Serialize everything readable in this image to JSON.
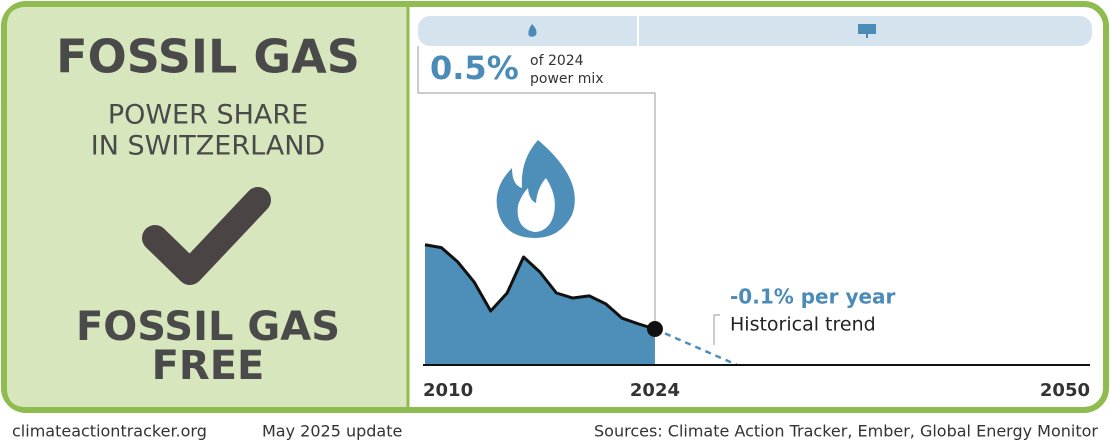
{
  "left_panel": {
    "title": "FOSSIL GAS",
    "subtitle_lines": [
      "POWER SHARE",
      "IN SWITZERLAND"
    ],
    "status_lines": [
      "FOSSIL GAS",
      "FREE"
    ]
  },
  "footer": {
    "site": "climateactiontracker.org",
    "update": "May 2025 update",
    "sources": "Sources: Climate Action Tracker, Ember, Global Energy Monitor"
  },
  "chart_data": {
    "type": "area",
    "color": "#4d8fb8",
    "x": [
      2010,
      2011,
      2012,
      2013,
      2014,
      2015,
      2016,
      2017,
      2018,
      2019,
      2020,
      2021,
      2022,
      2023,
      2024
    ],
    "values": [
      1.67,
      1.63,
      1.43,
      1.15,
      0.75,
      1.0,
      1.5,
      1.29,
      1.0,
      0.93,
      0.96,
      0.85,
      0.65,
      0.57,
      0.5
    ],
    "xlim": [
      2010,
      2050
    ],
    "xticks": [
      2010,
      2024,
      2050
    ],
    "ylim": [
      0,
      3.75
    ],
    "headline": {
      "value": 0.5,
      "label": "0.5%",
      "text_lines": [
        "of 2024",
        "power mix"
      ]
    },
    "trend": {
      "value": -0.1,
      "label": "-0.1% per year",
      "note": "Historical trend"
    }
  }
}
